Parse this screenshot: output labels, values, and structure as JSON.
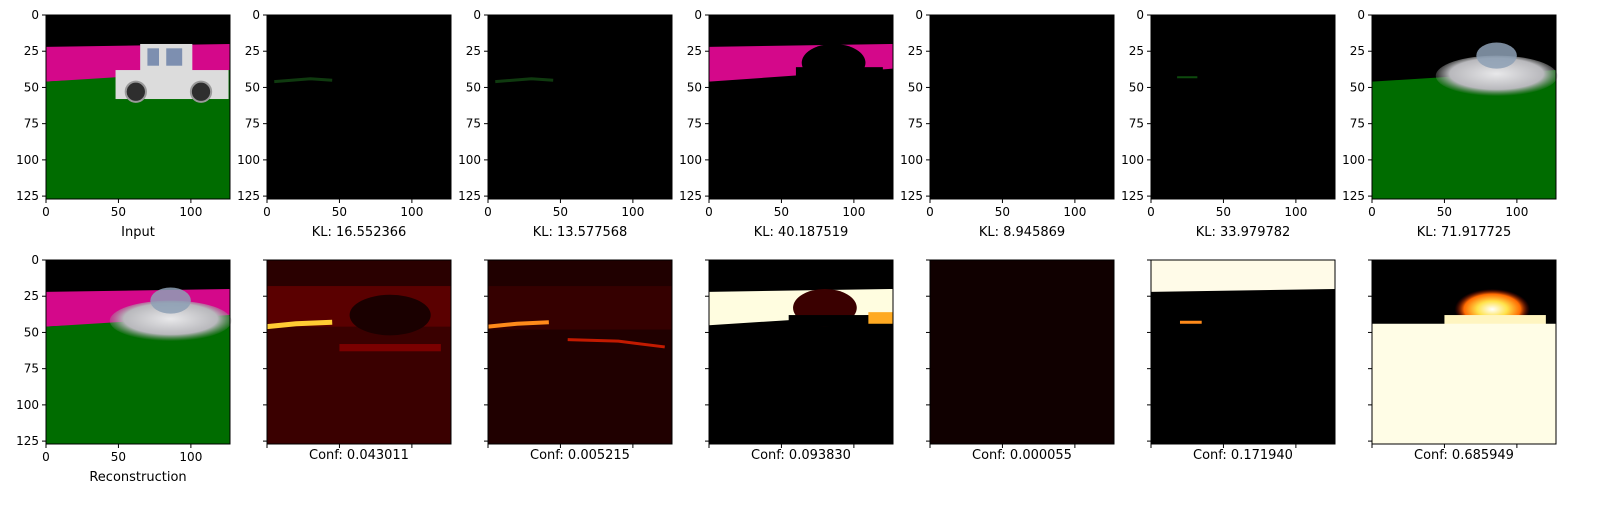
{
  "figure": {
    "rows": [
      {
        "panels": [
          {
            "caption": "Input",
            "kind": "input",
            "ticks": "labeled",
            "background": "#000000"
          },
          {
            "caption": "KL: 16.552366",
            "kind": "component",
            "ticks": "labeled",
            "background": "#000000"
          },
          {
            "caption": "KL: 13.577568",
            "kind": "component",
            "ticks": "labeled",
            "background": "#000000"
          },
          {
            "caption": "KL: 40.187519",
            "kind": "component",
            "ticks": "labeled",
            "background": "#000000"
          },
          {
            "caption": "KL: 8.945869",
            "kind": "component",
            "ticks": "labeled",
            "background": "#000000"
          },
          {
            "caption": "KL: 33.979782",
            "kind": "component",
            "ticks": "labeled",
            "background": "#000000"
          },
          {
            "caption": "KL: 71.917725",
            "kind": "component",
            "ticks": "labeled",
            "background": "#000000"
          }
        ]
      },
      {
        "panels": [
          {
            "caption": "Reconstruction",
            "kind": "reconstruction",
            "ticks": "labeled",
            "background": "#000000"
          },
          {
            "caption": "Conf: 0.043011",
            "kind": "heatmap",
            "ticks": "unlabeled",
            "background": "#3a0000"
          },
          {
            "caption": "Conf: 0.005215",
            "kind": "heatmap",
            "ticks": "unlabeled",
            "background": "#200000"
          },
          {
            "caption": "Conf: 0.093830",
            "kind": "heatmap",
            "ticks": "unlabeled",
            "background": "#000000"
          },
          {
            "caption": "Conf: 0.000055",
            "kind": "heatmap",
            "ticks": "unlabeled",
            "background": "#100000"
          },
          {
            "caption": "Conf: 0.171940",
            "kind": "heatmap",
            "ticks": "unlabeled",
            "background": "#000000"
          },
          {
            "caption": "Conf: 0.685949",
            "kind": "heatmap",
            "ticks": "unlabeled",
            "background": "#fffde8"
          }
        ]
      }
    ]
  },
  "chart_data": {
    "type": "heatmap",
    "description_units": "pixel grid 0-127",
    "xlim": [
      0,
      127
    ],
    "ylim": [
      127,
      0
    ],
    "xticks": [
      0,
      50,
      100
    ],
    "yticks": [
      0,
      25,
      50,
      75,
      100,
      125
    ],
    "xtick_labels": [
      "0",
      "50",
      "100"
    ],
    "ytick_labels": [
      "0",
      "25",
      "50",
      "75",
      "100",
      "125"
    ],
    "top_row_captions": [
      "Input",
      "KL: 16.552366",
      "KL: 13.577568",
      "KL: 40.187519",
      "KL: 8.945869",
      "KL: 33.979782",
      "KL: 71.917725"
    ],
    "bottom_row_captions": [
      "Reconstruction",
      "Conf: 0.043011",
      "Conf: 0.005215",
      "Conf: 0.093830",
      "Conf: 0.000055",
      "Conf: 0.171940",
      "Conf: 0.685949"
    ],
    "kl_values": [
      16.552366,
      13.577568,
      40.187519,
      8.945869,
      33.979782,
      71.917725
    ],
    "conf_values": [
      0.043011,
      0.005215,
      0.09383,
      5.5e-05,
      0.17194,
      0.685949
    ],
    "colors": {
      "sky": "#000000",
      "wall": "#d4088a",
      "ground": "#006c00",
      "car": "#dcdcdc",
      "heat_hot": "#ffffff",
      "heat_mid": "#ff9a1a",
      "heat_low": "#5a0000"
    },
    "grid": false,
    "legend": "none"
  }
}
